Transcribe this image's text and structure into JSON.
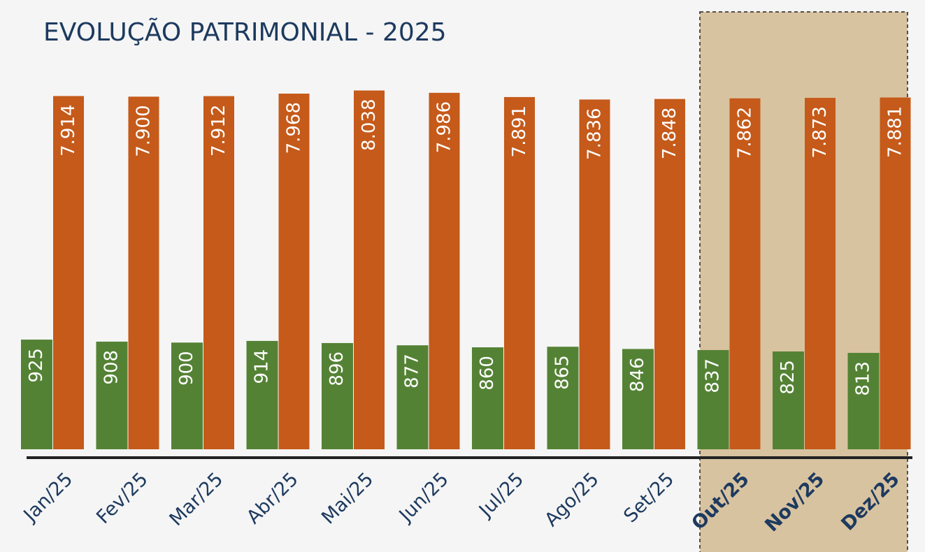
{
  "chart_data": {
    "type": "bar",
    "title": "EVOLUÇÃO PATRIMONIAL - 2025",
    "categories": [
      "Jan/25",
      "Fev/25",
      "Mar/25",
      "Abr/25",
      "Mai/25",
      "Jun/25",
      "Jul/25",
      "Ago/25",
      "Set/25",
      "Out/25",
      "Nov/25",
      "Dez/25"
    ],
    "ylim": [
      0,
      3200
    ],
    "y2lim": [
      0,
      8500
    ],
    "series": [
      {
        "color": "#548235",
        "values": [
          925,
          908,
          900,
          914,
          896,
          877,
          860,
          865,
          846,
          837,
          825,
          813
        ]
      },
      {
        "color": "#c55a1a",
        "axis": "y2",
        "values": [
          7914,
          7900,
          7912,
          7968,
          8038,
          7986,
          7891,
          7836,
          7848,
          7862,
          7873,
          7881
        ],
        "value_labels": [
          "7.914",
          "7.900",
          "7.912",
          "7.968",
          "8.038",
          "7.986",
          "7.891",
          "7.836",
          "7.848",
          "7.862",
          "7.873",
          "7.881"
        ]
      }
    ]
  }
}
